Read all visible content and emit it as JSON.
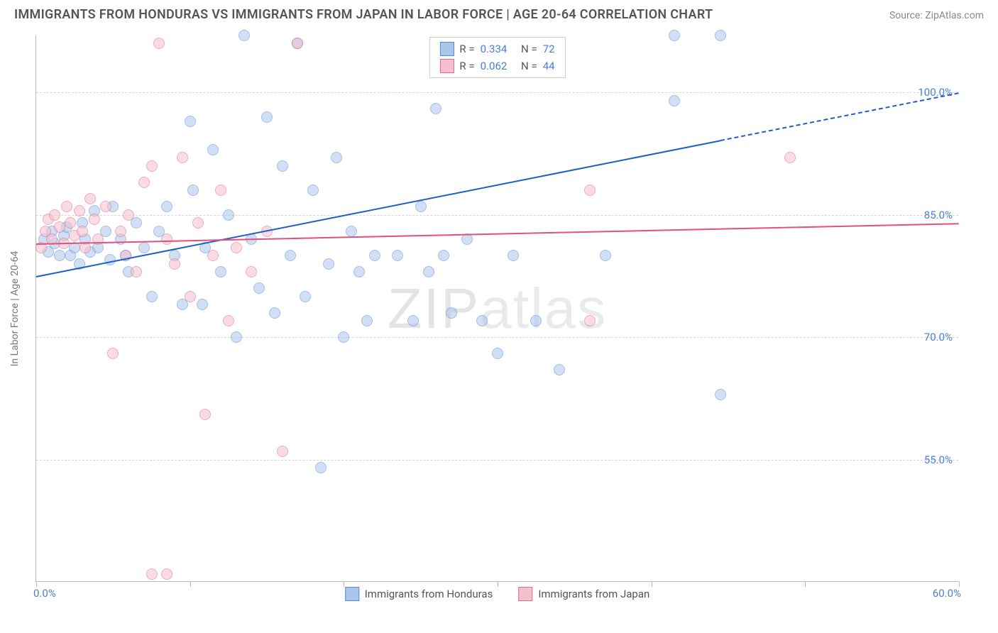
{
  "title": "IMMIGRANTS FROM HONDURAS VS IMMIGRANTS FROM JAPAN IN LABOR FORCE | AGE 20-64 CORRELATION CHART",
  "source": "Source: ZipAtlas.com",
  "y_axis_title": "In Labor Force | Age 20-64",
  "watermark": "ZIPatlas",
  "chart": {
    "type": "scatter",
    "background_color": "#ffffff",
    "grid_color": "#d6d6d6",
    "axis_line_color": "#bbbbbb",
    "text_color": "#555555",
    "value_color": "#4a7fd8",
    "xlim": [
      0,
      60
    ],
    "ylim": [
      40,
      107
    ],
    "x_tick_step": 10,
    "x_min_label": "0.0%",
    "x_max_label": "60.0%",
    "y_ticks": [
      55,
      70,
      85,
      100
    ],
    "y_tick_labels": [
      "55.0%",
      "70.0%",
      "85.0%",
      "100.0%"
    ],
    "marker_radius": 8,
    "series": [
      {
        "name": "Immigrants from Honduras",
        "color_fill": "#aac6ec",
        "color_stroke": "#5a8bd0",
        "trend_color": "#1f5fc4",
        "R": "0.334",
        "N": "72",
        "trend": {
          "x1": 0,
          "y1": 77.5,
          "x2": 60,
          "y2": 100,
          "dash_from_x": 44.5
        },
        "points": [
          [
            0.5,
            82
          ],
          [
            0.8,
            80.5
          ],
          [
            1.0,
            83
          ],
          [
            1.2,
            81.5
          ],
          [
            1.5,
            80
          ],
          [
            1.8,
            82.5
          ],
          [
            2.0,
            83.5
          ],
          [
            2.2,
            80
          ],
          [
            2.5,
            81
          ],
          [
            2.8,
            79
          ],
          [
            3.0,
            84
          ],
          [
            3.2,
            82
          ],
          [
            3.5,
            80.5
          ],
          [
            3.8,
            85.5
          ],
          [
            4.0,
            81
          ],
          [
            4.5,
            83
          ],
          [
            4.8,
            79.5
          ],
          [
            5.0,
            86
          ],
          [
            5.5,
            82
          ],
          [
            5.8,
            80
          ],
          [
            6.0,
            78
          ],
          [
            6.5,
            84
          ],
          [
            7.0,
            81
          ],
          [
            7.5,
            75
          ],
          [
            8.0,
            83
          ],
          [
            8.5,
            86
          ],
          [
            9.0,
            80
          ],
          [
            9.5,
            74
          ],
          [
            10.0,
            96.5
          ],
          [
            10.2,
            88
          ],
          [
            10.8,
            74
          ],
          [
            11.0,
            81
          ],
          [
            11.5,
            93
          ],
          [
            12.0,
            78
          ],
          [
            12.5,
            85
          ],
          [
            13.0,
            70
          ],
          [
            13.5,
            107
          ],
          [
            14.0,
            82
          ],
          [
            14.5,
            76
          ],
          [
            15.0,
            97
          ],
          [
            15.5,
            73
          ],
          [
            16.0,
            91
          ],
          [
            16.5,
            80
          ],
          [
            17.0,
            106
          ],
          [
            17.5,
            75
          ],
          [
            18.0,
            88
          ],
          [
            18.5,
            54
          ],
          [
            19.0,
            79
          ],
          [
            19.5,
            92
          ],
          [
            20.0,
            70
          ],
          [
            20.5,
            83
          ],
          [
            21.0,
            78
          ],
          [
            21.5,
            72
          ],
          [
            22.0,
            80
          ],
          [
            23.5,
            80
          ],
          [
            24.5,
            72
          ],
          [
            25.0,
            86
          ],
          [
            25.5,
            78
          ],
          [
            26.0,
            98
          ],
          [
            26.5,
            80
          ],
          [
            27.0,
            73
          ],
          [
            28.0,
            82
          ],
          [
            29.0,
            72
          ],
          [
            30.0,
            68
          ],
          [
            31.0,
            80
          ],
          [
            32.5,
            72
          ],
          [
            34.0,
            66
          ],
          [
            37.0,
            80
          ],
          [
            41.5,
            107
          ],
          [
            41.5,
            99
          ],
          [
            44.5,
            63
          ],
          [
            44.5,
            107
          ]
        ]
      },
      {
        "name": "Immigrants from Japan",
        "color_fill": "#f5c0cd",
        "color_stroke": "#e06a8a",
        "trend_color": "#e64e7c",
        "R": "0.062",
        "N": "44",
        "trend": {
          "x1": 0,
          "y1": 81.5,
          "x2": 60,
          "y2": 84
        },
        "points": [
          [
            0.3,
            81
          ],
          [
            0.6,
            83
          ],
          [
            0.8,
            84.5
          ],
          [
            1.0,
            82
          ],
          [
            1.2,
            85
          ],
          [
            1.5,
            83.5
          ],
          [
            1.8,
            81.5
          ],
          [
            2.0,
            86
          ],
          [
            2.2,
            84
          ],
          [
            2.5,
            82.5
          ],
          [
            2.8,
            85.5
          ],
          [
            3.0,
            83
          ],
          [
            3.2,
            81
          ],
          [
            3.5,
            87
          ],
          [
            3.8,
            84.5
          ],
          [
            4.0,
            82
          ],
          [
            4.5,
            86
          ],
          [
            5.0,
            68
          ],
          [
            5.5,
            83
          ],
          [
            5.8,
            80
          ],
          [
            6.0,
            85
          ],
          [
            6.5,
            78
          ],
          [
            7.0,
            89
          ],
          [
            7.5,
            91
          ],
          [
            8.0,
            106
          ],
          [
            8.5,
            82
          ],
          [
            9.0,
            79
          ],
          [
            9.5,
            92
          ],
          [
            10.0,
            75
          ],
          [
            10.5,
            84
          ],
          [
            11.0,
            60.5
          ],
          [
            11.5,
            80
          ],
          [
            12.0,
            88
          ],
          [
            12.5,
            72
          ],
          [
            13.0,
            81
          ],
          [
            14.0,
            78
          ],
          [
            15.0,
            83
          ],
          [
            16.0,
            56
          ],
          [
            17.0,
            106
          ],
          [
            8.5,
            41
          ],
          [
            7.5,
            41
          ],
          [
            36.0,
            88
          ],
          [
            49.0,
            92
          ],
          [
            36.0,
            72
          ]
        ]
      }
    ]
  },
  "legend_top": {
    "r_label": "R =",
    "n_label": "N ="
  },
  "legend_bottom": {
    "label_honduras": "Immigrants from Honduras",
    "label_japan": "Immigrants from Japan"
  }
}
